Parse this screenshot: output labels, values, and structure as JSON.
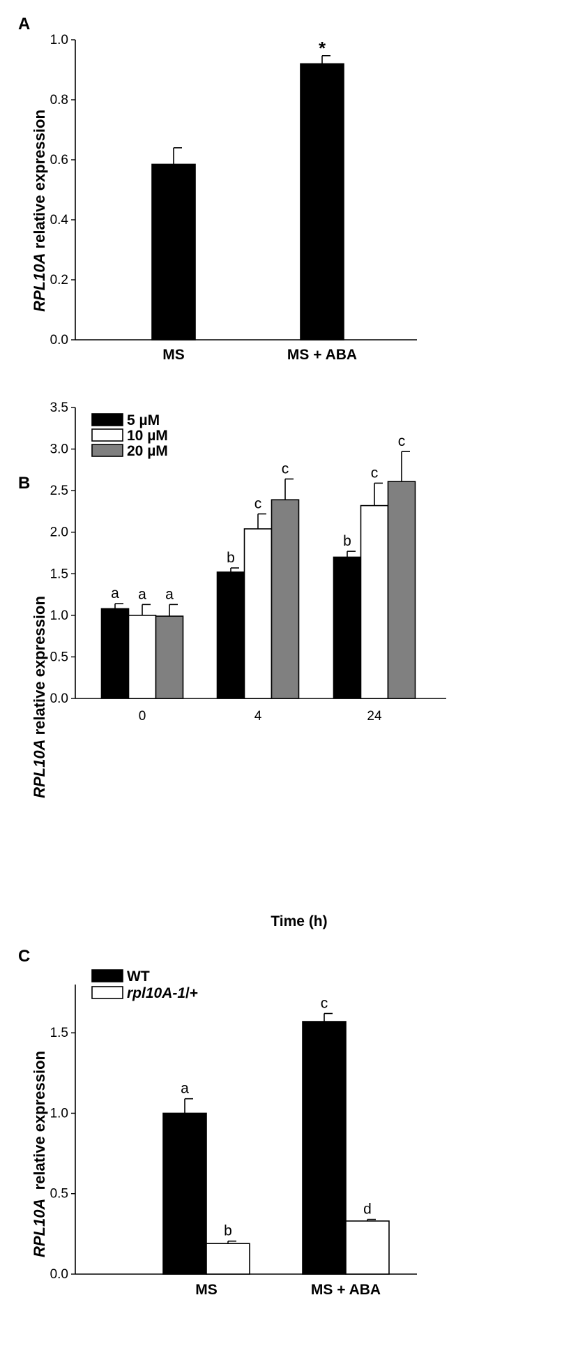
{
  "chart_data": [
    {
      "panel": "A",
      "type": "bar",
      "categories": [
        "MS",
        "MS + ABA"
      ],
      "series": [
        {
          "name": "",
          "values": [
            0.585,
            0.92
          ],
          "errors": [
            0.055,
            0.027
          ],
          "color": "#000000"
        }
      ],
      "significance": [
        [
          ""
        ],
        [
          "*"
        ]
      ],
      "ylabel_gene": "RPL10A",
      "ylabel_rest": " relative expression",
      "xlabel": "",
      "ylim": [
        0,
        1.0
      ],
      "yticks": [
        0.0,
        0.2,
        0.4,
        0.6,
        0.8,
        1.0
      ],
      "ytick_labels": [
        "0.0",
        "0.2",
        "0.4",
        "0.6",
        "0.8",
        "1.0"
      ],
      "legend": []
    },
    {
      "panel": "B",
      "type": "bar",
      "categories": [
        "0",
        "4",
        "24"
      ],
      "series": [
        {
          "name": "5 µM",
          "values": [
            1.08,
            1.52,
            1.7
          ],
          "errors": [
            0.06,
            0.05,
            0.07
          ],
          "color": "#000000"
        },
        {
          "name": "10 µM",
          "values": [
            1.0,
            2.04,
            2.32
          ],
          "errors": [
            0.13,
            0.18,
            0.27
          ],
          "color": "#ffffff"
        },
        {
          "name": "20 µM",
          "values": [
            0.99,
            2.39,
            2.61
          ],
          "errors": [
            0.14,
            0.25,
            0.36
          ],
          "color": "#808080"
        }
      ],
      "significance": [
        [
          "a",
          "a",
          "a"
        ],
        [
          "b",
          "c",
          "c"
        ],
        [
          "b",
          "c",
          "c"
        ]
      ],
      "ylabel_gene": "RPL10A",
      "ylabel_rest": " relative expression",
      "xlabel": "Time (h)",
      "ylim": [
        0,
        3.5
      ],
      "yticks": [
        0.0,
        0.5,
        1.0,
        1.5,
        2.0,
        2.5,
        3.0,
        3.5
      ],
      "ytick_labels": [
        "0.0",
        "0.5",
        "1.0",
        "1.5",
        "2.0",
        "2.5",
        "3.0",
        "3.5"
      ],
      "legend": [
        {
          "label": " 5 µM",
          "italic": "",
          "suffix": "",
          "color": "#000000"
        },
        {
          "label": "10 µM",
          "italic": "",
          "suffix": "",
          "color": "#ffffff"
        },
        {
          "label": "20 µM",
          "italic": "",
          "suffix": "",
          "color": "#808080"
        }
      ]
    },
    {
      "panel": "C",
      "type": "bar",
      "categories": [
        "MS",
        "MS + ABA"
      ],
      "series": [
        {
          "name": "WT",
          "values": [
            1.0,
            1.57
          ],
          "errors": [
            0.09,
            0.05
          ],
          "color": "#000000"
        },
        {
          "name": "rpl10A-1/+",
          "values": [
            0.19,
            0.33
          ],
          "errors": [
            0.015,
            0.01
          ],
          "color": "#ffffff"
        }
      ],
      "significance": [
        [
          "a",
          "b"
        ],
        [
          "c",
          "d"
        ]
      ],
      "ylabel_gene": "RPL10A",
      "ylabel_rest": "  relative expression",
      "xlabel": "",
      "ylim": [
        0,
        1.8
      ],
      "yticks": [
        0.0,
        0.5,
        1.0,
        1.5
      ],
      "ytick_labels": [
        "0.0",
        "0.5",
        "1.0",
        "1.5"
      ],
      "legend": [
        {
          "label": "WT",
          "italic": "",
          "suffix": "",
          "color": "#000000"
        },
        {
          "label": "",
          "italic": "rpl10A-1",
          "suffix": "/+",
          "color": "#ffffff"
        }
      ]
    }
  ]
}
